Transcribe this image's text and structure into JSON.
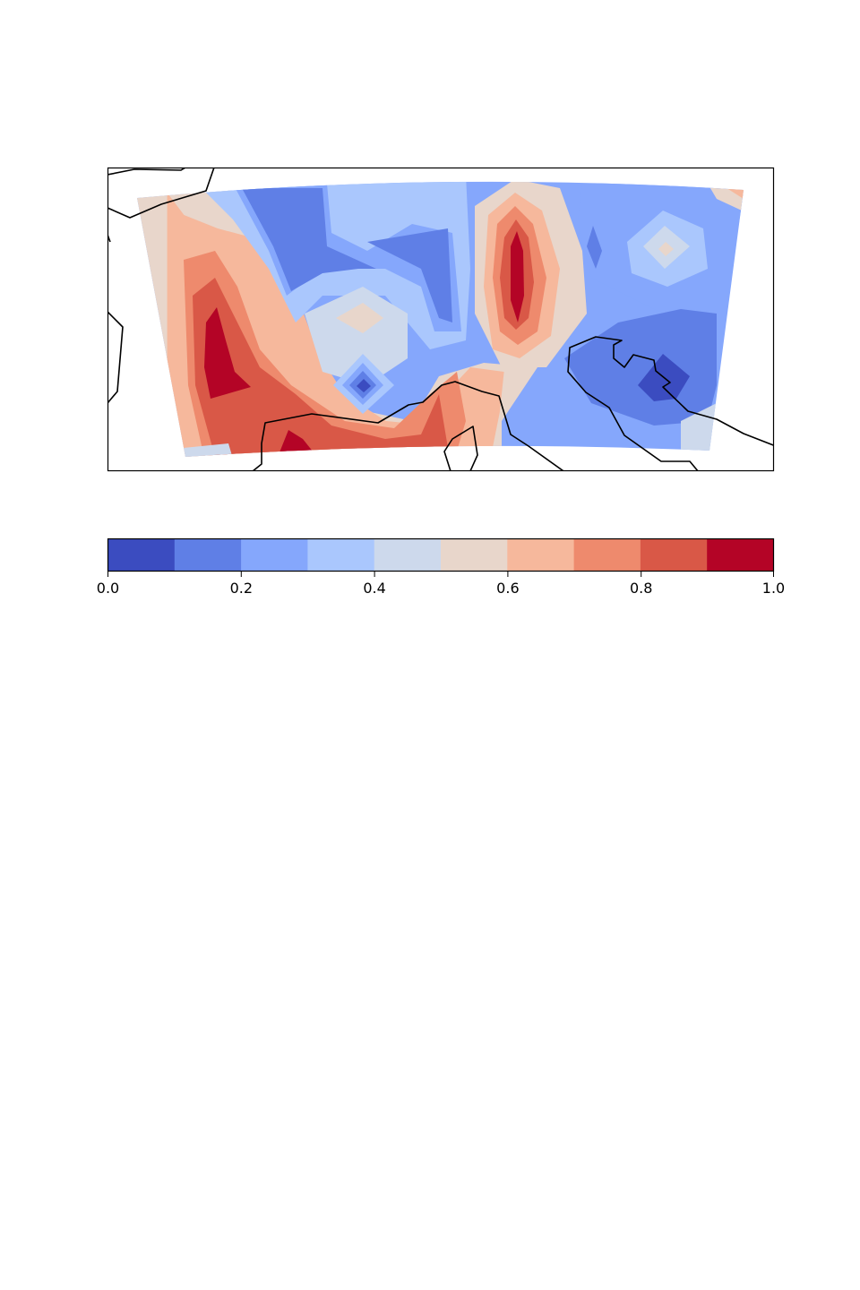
{
  "figure": {
    "map": {
      "type": "filled-contour-map",
      "coastlines": true,
      "value_range": [
        0.0,
        1.0
      ],
      "levels": [
        0.0,
        0.1,
        0.2,
        0.3,
        0.4,
        0.5,
        0.6,
        0.7,
        0.8,
        0.9,
        1.0
      ],
      "features": [
        {
          "name": "western-high",
          "value": 0.95
        },
        {
          "name": "central-north-high",
          "value": 0.95
        },
        {
          "name": "south-central-high",
          "value": 0.85
        },
        {
          "name": "central-low",
          "value": 0.05
        },
        {
          "name": "eastern-low",
          "value": 0.05
        },
        {
          "name": "northeast-local-max",
          "value": 0.5
        },
        {
          "name": "central-local-max",
          "value": 0.6
        }
      ]
    },
    "colorbar": {
      "orientation": "horizontal",
      "colors": [
        "#3b4cc0",
        "#5f7fe6",
        "#85a7fc",
        "#aac7fd",
        "#cdd9ec",
        "#e8d6cb",
        "#f6b89c",
        "#ee8a6d",
        "#d95847",
        "#b40426"
      ],
      "tick_labels": [
        "0.0",
        "0.2",
        "0.4",
        "0.6",
        "0.8",
        "1.0"
      ]
    }
  }
}
